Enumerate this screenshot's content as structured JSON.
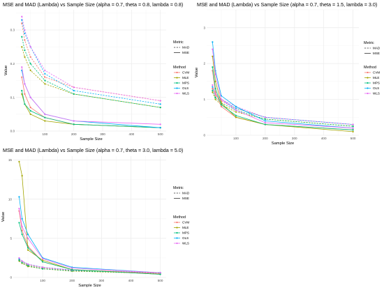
{
  "chart_data": [
    {
      "type": "line",
      "title": "MSE and MAD (Lambda) vs Sample Size (alpha = 0.7, theta = 0.8, lambda = 0.8)",
      "xlabel": "Sample Size",
      "ylabel": "Value",
      "xlim": [
        0,
        520
      ],
      "ylim": [
        0,
        0.36
      ],
      "x_ticks": [
        100,
        200,
        300,
        400,
        500
      ],
      "y_ticks": [
        0.0,
        0.1,
        0.2,
        0.3
      ],
      "y_tick_labels": [
        "0.0",
        "0.1",
        "0.2",
        "0.3"
      ],
      "grid": true,
      "x": [
        20,
        30,
        50,
        100,
        200,
        500
      ],
      "legends": {
        "metric": {
          "title": "Metric",
          "items": [
            "MAD",
            "MSE"
          ]
        },
        "method": {
          "title": "Method",
          "items": [
            "CVM",
            "MLE",
            "MPS",
            "OLS",
            "WLS"
          ]
        }
      },
      "series": [
        {
          "method": "CVM",
          "metric": "MAD",
          "values": [
            0.32,
            0.27,
            0.22,
            0.16,
            0.13,
            0.09
          ]
        },
        {
          "method": "MLE",
          "metric": "MAD",
          "values": [
            0.25,
            0.22,
            0.18,
            0.14,
            0.11,
            0.07
          ]
        },
        {
          "method": "MPS",
          "metric": "MAD",
          "values": [
            0.28,
            0.24,
            0.2,
            0.15,
            0.11,
            0.07
          ]
        },
        {
          "method": "OLS",
          "metric": "MAD",
          "values": [
            0.33,
            0.29,
            0.25,
            0.17,
            0.12,
            0.08
          ]
        },
        {
          "method": "WLS",
          "metric": "MAD",
          "values": [
            0.34,
            0.3,
            0.25,
            0.18,
            0.13,
            0.09
          ]
        },
        {
          "method": "CVM",
          "metric": "MSE",
          "values": [
            0.16,
            0.11,
            0.07,
            0.04,
            0.02,
            0.01
          ]
        },
        {
          "method": "MLE",
          "metric": "MSE",
          "values": [
            0.11,
            0.08,
            0.05,
            0.03,
            0.02,
            0.01
          ]
        },
        {
          "method": "MPS",
          "metric": "MSE",
          "values": [
            0.12,
            0.08,
            0.06,
            0.04,
            0.02,
            0.01
          ]
        },
        {
          "method": "OLS",
          "metric": "MSE",
          "values": [
            0.18,
            0.14,
            0.1,
            0.05,
            0.03,
            0.01
          ]
        },
        {
          "method": "WLS",
          "metric": "MSE",
          "values": [
            0.19,
            0.14,
            0.1,
            0.05,
            0.03,
            0.02
          ]
        }
      ]
    },
    {
      "type": "line",
      "title": "MSE and MAD (Lambda) vs Sample Size (alpha = 0.7, theta = 1.5, lambda = 3.0)",
      "xlabel": "Sample Size",
      "ylabel": "Value",
      "xlim": [
        0,
        520
      ],
      "ylim": [
        0,
        3.5
      ],
      "x_ticks": [
        100,
        200,
        300,
        400,
        500
      ],
      "y_ticks": [
        0,
        1,
        2,
        3
      ],
      "y_tick_labels": [
        "0",
        "1",
        "2",
        "3"
      ],
      "grid": true,
      "x": [
        20,
        30,
        50,
        100,
        200,
        500
      ],
      "legends": {
        "metric": {
          "title": "Metric",
          "items": [
            "MAD",
            "MSE"
          ]
        },
        "method": {
          "title": "Method",
          "items": [
            "CVM",
            "MLE",
            "MPS",
            "OLS",
            "WLS"
          ]
        }
      },
      "series": [
        {
          "method": "CVM",
          "metric": "MAD",
          "values": [
            1.3,
            1.1,
            0.95,
            0.75,
            0.5,
            0.3
          ]
        },
        {
          "method": "MLE",
          "metric": "MAD",
          "values": [
            1.2,
            1.0,
            0.85,
            0.65,
            0.45,
            0.25
          ]
        },
        {
          "method": "MPS",
          "metric": "MAD",
          "values": [
            1.25,
            1.05,
            0.9,
            0.7,
            0.45,
            0.25
          ]
        },
        {
          "method": "OLS",
          "metric": "MAD",
          "values": [
            1.35,
            1.15,
            1.0,
            0.75,
            0.5,
            0.3
          ]
        },
        {
          "method": "WLS",
          "metric": "MAD",
          "values": [
            1.4,
            1.15,
            1.0,
            0.8,
            0.5,
            0.3
          ]
        },
        {
          "method": "CVM",
          "metric": "MSE",
          "values": [
            1.8,
            1.2,
            0.8,
            0.5,
            0.3,
            0.15
          ]
        },
        {
          "method": "MLE",
          "metric": "MSE",
          "values": [
            2.2,
            1.5,
            0.9,
            0.5,
            0.3,
            0.1
          ]
        },
        {
          "method": "MPS",
          "metric": "MSE",
          "values": [
            1.9,
            1.3,
            0.85,
            0.55,
            0.3,
            0.15
          ]
        },
        {
          "method": "OLS",
          "metric": "MSE",
          "values": [
            2.6,
            1.8,
            1.1,
            0.8,
            0.4,
            0.2
          ]
        },
        {
          "method": "WLS",
          "metric": "MSE",
          "values": [
            2.4,
            1.7,
            1.0,
            0.7,
            0.35,
            0.2
          ]
        }
      ]
    },
    {
      "type": "line",
      "title": "MSE and MAD (Lambda) vs Sample Size (alpha = 0.7, theta = 3.0, lambda = 5.0)",
      "xlabel": "Sample Size",
      "ylabel": "Value",
      "xlim": [
        0,
        520
      ],
      "ylim": [
        0,
        15.5
      ],
      "x_ticks": [
        100,
        200,
        300,
        400,
        500
      ],
      "y_ticks": [
        0,
        5,
        10,
        15
      ],
      "y_tick_labels": [
        "0",
        "5",
        "10",
        "15"
      ],
      "grid": true,
      "x": [
        20,
        30,
        50,
        100,
        200,
        500
      ],
      "legends": {
        "metric": {
          "title": "Metric",
          "items": [
            "MAD",
            "MSE"
          ]
        },
        "method": {
          "title": "Method",
          "items": [
            "CVM",
            "MLE",
            "MPS",
            "OLS",
            "WLS"
          ]
        }
      },
      "series": [
        {
          "method": "CVM",
          "metric": "MAD",
          "values": [
            2.3,
            2.0,
            1.6,
            1.2,
            0.9,
            0.6
          ]
        },
        {
          "method": "MLE",
          "metric": "MAD",
          "values": [
            2.1,
            1.8,
            1.4,
            1.1,
            0.8,
            0.5
          ]
        },
        {
          "method": "MPS",
          "metric": "MAD",
          "values": [
            2.2,
            1.9,
            1.5,
            1.1,
            0.85,
            0.55
          ]
        },
        {
          "method": "OLS",
          "metric": "MAD",
          "values": [
            2.4,
            2.1,
            1.7,
            1.3,
            0.95,
            0.6
          ]
        },
        {
          "method": "WLS",
          "metric": "MAD",
          "values": [
            2.5,
            2.1,
            1.7,
            1.3,
            0.95,
            0.6
          ]
        },
        {
          "method": "CVM",
          "metric": "MSE",
          "values": [
            8.5,
            6.0,
            4.0,
            2.0,
            1.0,
            0.5
          ]
        },
        {
          "method": "MLE",
          "metric": "MSE",
          "values": [
            14.8,
            13.0,
            3.5,
            2.2,
            1.0,
            0.4
          ]
        },
        {
          "method": "MPS",
          "metric": "MSE",
          "values": [
            7.0,
            5.5,
            3.8,
            2.0,
            1.0,
            0.4
          ]
        },
        {
          "method": "OLS",
          "metric": "MSE",
          "values": [
            10.3,
            7.5,
            5.5,
            2.5,
            1.3,
            0.6
          ]
        },
        {
          "method": "WLS",
          "metric": "MSE",
          "values": [
            8.8,
            6.5,
            5.0,
            2.4,
            1.2,
            0.6
          ]
        }
      ]
    }
  ],
  "colors": {
    "CVM": "#F8766D",
    "MLE": "#A3A500",
    "MPS": "#00BF7D",
    "OLS": "#00B0F6",
    "WLS": "#E76BF3",
    "grid": "#EBEBEB",
    "text": "#333333",
    "background": "#FFFFFF"
  }
}
